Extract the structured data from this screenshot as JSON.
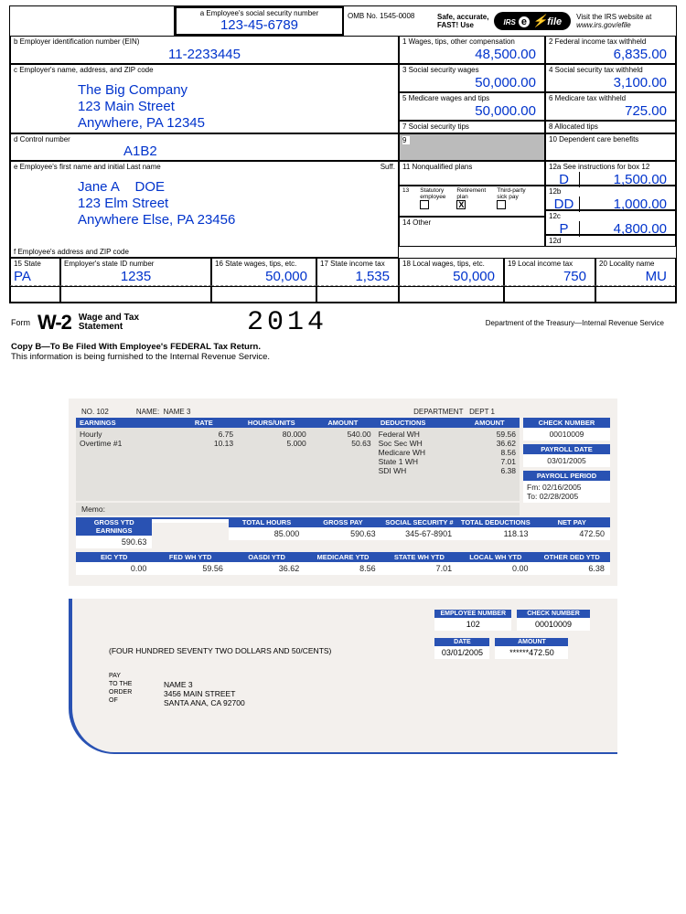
{
  "w2": {
    "ssn_label": "a  Employee's social security number",
    "ssn": "123-45-6789",
    "omb": "OMB No. 1545-0008",
    "safe": "Safe, accurate,\nFAST! Use",
    "efile_irs": "IRS",
    "efile_e": "e",
    "efile_file": "file",
    "visit": "Visit the IRS website at",
    "visit_url": "www.irs.gov/efile",
    "b_label": "b  Employer identification number (EIN)",
    "b_value": "11-2233445",
    "box1_label": "1   Wages, tips, other compensation",
    "box1": "48,500.00",
    "box2_label": "2   Federal income tax withheld",
    "box2": "6,835.00",
    "c_label": "c  Employer's name, address, and ZIP code",
    "employer_name": "The Big Company",
    "employer_street": "123 Main Street",
    "employer_city": "Anywhere, PA 12345",
    "box3_label": "3   Social security wages",
    "box3": "50,000.00",
    "box4_label": "4   Social security tax withheld",
    "box4": "3,100.00",
    "box5_label": "5   Medicare wages and tips",
    "box5": "50,000.00",
    "box6_label": "6   Medicare tax withheld",
    "box6": "725.00",
    "box7_label": "7   Social security tips",
    "box8_label": "8   Allocated tips",
    "d_label": "d  Control number",
    "d_value": "A1B2",
    "box9_label": "9",
    "box10_label": "10  Dependent care benefits",
    "e_label": "e  Employee's first name and initial        Last name",
    "e_suff": "Suff.",
    "emp_first": "Jane A",
    "emp_last": "DOE",
    "emp_street": "123 Elm Street",
    "emp_city": "Anywhere Else, PA 23456",
    "box11_label": "11  Nonqualified plans",
    "box12a_label": "12a  See instructions for box 12",
    "box12a_code": "D",
    "box12a_val": "1,500.00",
    "box12b_label": "12b",
    "box12b_code": "DD",
    "box12b_val": "1,000.00",
    "box12c_label": "12c",
    "box12c_code": "P",
    "box12c_val": "4,800.00",
    "box12d_label": "12d",
    "box13_label": "13",
    "box13_stat": "Statutory\nemployee",
    "box13_ret": "Retirement\nplan",
    "box13_ret_check": "X",
    "box13_sick": "Third-party\nsick pay",
    "box14_label": "14  Other",
    "f_label": "f  Employee's address and ZIP code",
    "box15_label": "15  State",
    "box15_state": "PA",
    "box15b_label": "Employer's state ID number",
    "box15b": "1235",
    "box16_label": "16  State wages, tips, etc.",
    "box16": "50,000",
    "box17_label": "17  State income tax",
    "box17": "1,535",
    "box18_label": "18  Local wages, tips, etc.",
    "box18": "50,000",
    "box19_label": "19  Local income tax",
    "box19": "750",
    "box20_label": "20  Locality name",
    "box20": "MU",
    "form": "Form",
    "form_name": "W-2",
    "form_sub1": "Wage and Tax",
    "form_sub2": "Statement",
    "year": "2014",
    "dept": "Department of the Treasury—Internal Revenue Service",
    "copyb_bold": "Copy B—To Be Filed With Employee's FEDERAL Tax Return.",
    "copyb_text": "This information is being furnished to the Internal Revenue Service."
  },
  "paystub": {
    "no_label": "NO.",
    "no": "102",
    "name_label": "NAME:",
    "name": "NAME 3",
    "dept_label": "DEPARTMENT",
    "dept": "DEPT 1",
    "hdr_earn": "EARNINGS",
    "hdr_rate": "RATE",
    "hdr_hours": "HOURS/UNITS",
    "hdr_amt": "AMOUNT",
    "hdr_ded": "DEDUCTIONS",
    "hdr_amt2": "AMOUNT",
    "earn_rows": [
      {
        "n": "Hourly",
        "r": "6.75",
        "h": "80.000",
        "a": "540.00"
      },
      {
        "n": "Overtime #1",
        "r": "10.13",
        "h": "5.000",
        "a": "50.63"
      }
    ],
    "ded_rows": [
      {
        "n": "Federal WH",
        "a": "59.56"
      },
      {
        "n": "Soc Sec WH",
        "a": "36.62"
      },
      {
        "n": "Medicare WH",
        "a": "8.56"
      },
      {
        "n": "State 1 WH",
        "a": "7.01"
      },
      {
        "n": "SDI WH",
        "a": "6.38"
      }
    ],
    "side_check_hdr": "CHECK NUMBER",
    "side_check": "00010009",
    "side_date_hdr": "PAYROLL DATE",
    "side_date": "03/01/2005",
    "side_period_hdr": "PAYROLL PERIOD",
    "side_fm": "Fm: 02/16/2005",
    "side_to": "To: 02/28/2005",
    "memo": "Memo:",
    "sum1_hdr": "GROSS YTD EARNINGS",
    "sum1": "590.63",
    "sum2_hdr": "TOTAL HOURS",
    "sum2": "85.000",
    "sum3_hdr": "GROSS PAY",
    "sum3": "590.63",
    "sum4_hdr": "SOCIAL SECURITY #",
    "sum4": "345-67-8901",
    "sum5_hdr": "TOTAL DEDUCTIONS",
    "sum5": "118.13",
    "sum6_hdr": "NET PAY",
    "sum6": "472.50",
    "yt1_hdr": "EIC YTD",
    "yt1": "0.00",
    "yt2_hdr": "FED WH YTD",
    "yt2": "59.56",
    "yt3_hdr": "OASDI YTD",
    "yt3": "36.62",
    "yt4_hdr": "MEDICARE YTD",
    "yt4": "8.56",
    "yt5_hdr": "STATE WH YTD",
    "yt5": "7.01",
    "yt6_hdr": "LOCAL WH YTD",
    "yt6": "0.00",
    "yt7_hdr": "OTHER DED YTD",
    "yt7": "6.38"
  },
  "check": {
    "emp_hdr": "EMPLOYEE NUMBER",
    "emp": "102",
    "chk_hdr": "CHECK NUMBER",
    "chk": "00010009",
    "date_hdr": "DATE",
    "date": "03/01/2005",
    "amt_hdr": "AMOUNT",
    "amt": "******472.50",
    "words": "(FOUR HUNDRED SEVENTY TWO DOLLARS AND 50/CENTS)",
    "pay1": "PAY",
    "pay2": "TO THE",
    "pay3": "ORDER",
    "pay4": "OF",
    "addr1": "NAME 3",
    "addr2": "3456 MAIN STREET",
    "addr3": "SANTA ANA, CA 92700"
  }
}
